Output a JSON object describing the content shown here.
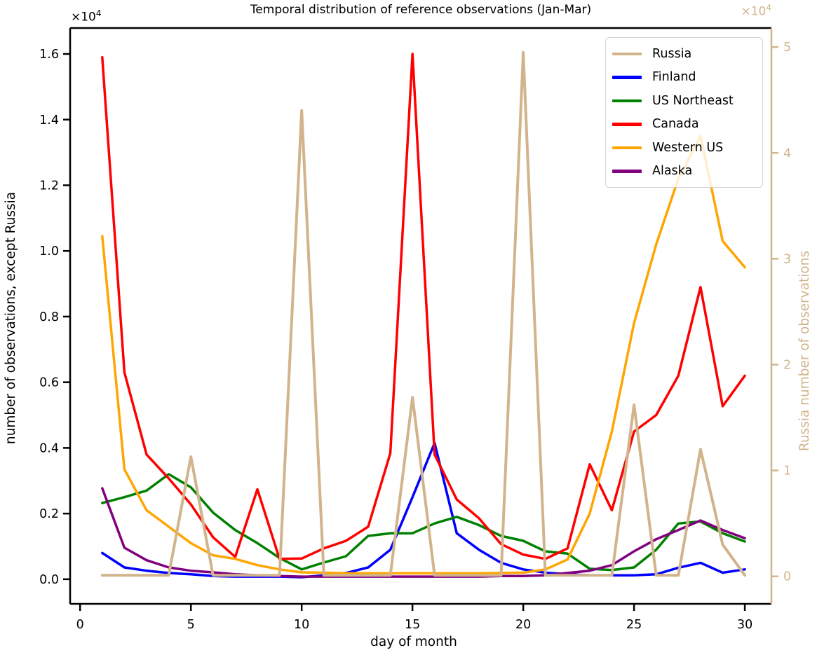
{
  "chart_data": {
    "type": "line",
    "title": "Temporal distribution of reference observations (Jan-Mar)",
    "xlabel": "day of month",
    "grid": false,
    "x": [
      1,
      2,
      3,
      4,
      5,
      6,
      7,
      8,
      9,
      10,
      11,
      12,
      13,
      14,
      15,
      16,
      17,
      18,
      19,
      20,
      21,
      22,
      23,
      24,
      25,
      26,
      27,
      28,
      29,
      30
    ],
    "axes": {
      "x": {
        "min": -0.45,
        "max": 31.2,
        "ticks": [
          0,
          5,
          10,
          15,
          20,
          25,
          30
        ],
        "tick_labels": [
          "0",
          "5",
          "10",
          "15",
          "20",
          "25",
          "30"
        ]
      },
      "y_left": {
        "min": -750,
        "max": 16790,
        "ticks": [
          0,
          2000,
          4000,
          6000,
          8000,
          10000,
          12000,
          14000,
          16000
        ],
        "tick_labels": [
          "0.0",
          "0.2",
          "0.4",
          "0.6",
          "0.8",
          "1.0",
          "1.2",
          "1.4",
          "1.6"
        ],
        "label": "number of observations, except Russia",
        "offset_base": "×10",
        "offset_exp": "4",
        "color": "#000000"
      },
      "y_right": {
        "min": -2600,
        "max": 51800,
        "ticks": [
          0,
          10000,
          20000,
          30000,
          40000,
          50000
        ],
        "tick_labels": [
          "0",
          "1",
          "2",
          "3",
          "4",
          "5"
        ],
        "label": "Russia number of observations",
        "offset_base": "×10",
        "offset_exp": "4",
        "color": "#d2b48c"
      }
    },
    "legend": {
      "position": "upper right",
      "entries": [
        "Russia",
        "Finland",
        "US Northeast",
        "Canada",
        "Western US",
        "Alaska"
      ]
    },
    "series": [
      {
        "name": "Russia",
        "axis": "right",
        "color": "#d2b48c",
        "linewidth": 4,
        "values": [
          100,
          100,
          100,
          100,
          11300,
          100,
          100,
          100,
          100,
          44000,
          100,
          100,
          100,
          100,
          16900,
          100,
          100,
          100,
          100,
          49500,
          100,
          100,
          100,
          100,
          16200,
          100,
          100,
          12000,
          3000,
          100
        ]
      },
      {
        "name": "Finland",
        "axis": "left",
        "color": "#0000ff",
        "linewidth": 3.5,
        "values": [
          800,
          360,
          260,
          190,
          150,
          100,
          80,
          80,
          80,
          60,
          120,
          190,
          360,
          900,
          2500,
          4150,
          1400,
          900,
          500,
          300,
          200,
          150,
          120,
          120,
          120,
          150,
          350,
          500,
          200,
          300
        ]
      },
      {
        "name": "US Northeast",
        "axis": "left",
        "color": "#008000",
        "linewidth": 3.5,
        "values": [
          2320,
          2500,
          2700,
          3200,
          2800,
          2030,
          1500,
          1100,
          650,
          300,
          510,
          700,
          1320,
          1400,
          1400,
          1700,
          1900,
          1650,
          1320,
          1170,
          850,
          780,
          320,
          280,
          360,
          900,
          1700,
          1760,
          1400,
          1150
        ]
      },
      {
        "name": "Canada",
        "axis": "left",
        "color": "#ff0000",
        "linewidth": 3.5,
        "values": [
          15900,
          6300,
          3800,
          3070,
          2280,
          1280,
          680,
          2740,
          620,
          630,
          940,
          1170,
          1600,
          3840,
          16000,
          3800,
          2430,
          1860,
          1070,
          750,
          620,
          940,
          3500,
          2100,
          4500,
          5000,
          6200,
          8900,
          5270,
          6200
        ]
      },
      {
        "name": "Western US",
        "axis": "left",
        "color": "#ffa500",
        "linewidth": 3.5,
        "values": [
          10450,
          3350,
          2100,
          1600,
          1100,
          730,
          620,
          430,
          300,
          210,
          200,
          180,
          180,
          180,
          180,
          180,
          180,
          180,
          190,
          200,
          300,
          600,
          2000,
          4500,
          7800,
          10200,
          12200,
          13500,
          10300,
          9500
        ]
      },
      {
        "name": "Alaska",
        "axis": "left",
        "color": "#800080",
        "linewidth": 3.5,
        "values": [
          2770,
          960,
          580,
          360,
          260,
          210,
          150,
          120,
          100,
          80,
          80,
          80,
          80,
          80,
          80,
          80,
          80,
          80,
          100,
          100,
          120,
          190,
          260,
          430,
          850,
          1220,
          1500,
          1790,
          1500,
          1250
        ]
      }
    ]
  }
}
